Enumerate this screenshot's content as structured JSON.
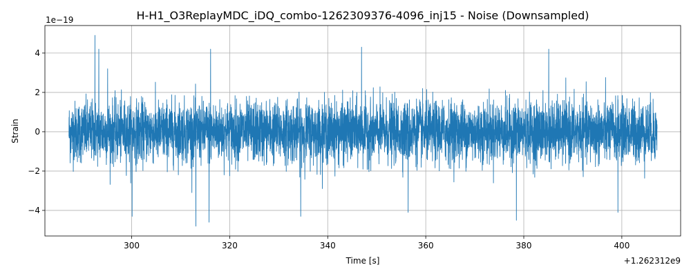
{
  "chart_data": {
    "type": "line",
    "title": "H-H1_O3ReplayMDC_iDQ_combo-1262309376-4096_inj15 - Noise (Downsampled)",
    "xlabel": "Time [s]",
    "ylabel": "Strain",
    "x_offset_label": "+1.262312e9",
    "y_scale_label": "1e−19",
    "xlim": [
      282.3,
      412.0
    ],
    "ylim": [
      -5.3,
      5.4
    ],
    "xticks": [
      300,
      320,
      340,
      360,
      380,
      400
    ],
    "xtick_labels": [
      "300",
      "320",
      "340",
      "360",
      "380",
      "400"
    ],
    "yticks": [
      -4,
      -2,
      0,
      2,
      4
    ],
    "ytick_labels": [
      "−4",
      "−2",
      "0",
      "2",
      "4"
    ],
    "grid": true,
    "series": [
      {
        "color": "#1f77b4",
        "x_range": [
          287.2,
          407.2
        ],
        "typical_amplitude": 2.0,
        "peaks": [
          {
            "x": 292.5,
            "y": 4.9
          },
          {
            "x": 293.3,
            "y": 4.2
          },
          {
            "x": 313.1,
            "y": -4.8
          },
          {
            "x": 315.8,
            "y": -4.6
          },
          {
            "x": 316.1,
            "y": 4.2
          },
          {
            "x": 334.5,
            "y": -4.3
          },
          {
            "x": 346.9,
            "y": 4.3
          },
          {
            "x": 378.5,
            "y": -4.5
          },
          {
            "x": 385.1,
            "y": 4.2
          },
          {
            "x": 399.2,
            "y": -4.1
          },
          {
            "x": 300.1,
            "y": -4.3
          },
          {
            "x": 295.1,
            "y": 3.2
          },
          {
            "x": 356.4,
            "y": -4.1
          }
        ]
      }
    ]
  }
}
